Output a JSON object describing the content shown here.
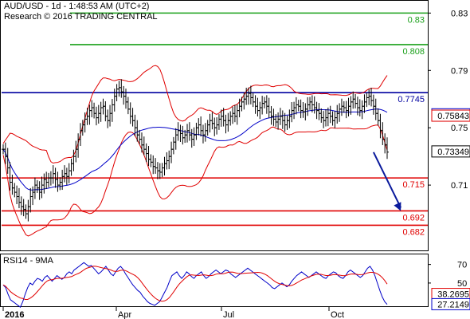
{
  "header": {
    "line1": "AUD/USD - 1d - 1:48:53 AM (UTC+2)",
    "line2": "Research © 2016 TRADING CENTRAL"
  },
  "rsi_label": "RSI14 - 9MA",
  "colors": {
    "resistance": "#1aa01a",
    "pivot": "#0000a0",
    "support": "#e00000",
    "bollinger": "#e00000",
    "ma": "#0000c8",
    "price": "#000000",
    "rsi": "#0000c8",
    "rsi_ma": "#e00000",
    "arrow": "#0a1a9c"
  },
  "chart_data": [
    {
      "type": "line",
      "title": "AUD/USD",
      "x_labels": [
        "2016",
        "Apr",
        "Jul",
        "Oct"
      ],
      "y_ticks": [
        0.71,
        0.75,
        0.79,
        0.83
      ],
      "ylim": [
        0.665,
        0.838
      ],
      "levels": [
        {
          "value": 0.83,
          "label": "0.83",
          "kind": "resistance"
        },
        {
          "value": 0.808,
          "label": "0.808",
          "kind": "resistance"
        },
        {
          "value": 0.7745,
          "label": "0.7745",
          "kind": "pivot"
        },
        {
          "value": 0.715,
          "label": "0.715",
          "kind": "support"
        },
        {
          "value": 0.692,
          "label": "0.692",
          "kind": "support"
        },
        {
          "value": 0.682,
          "label": "0.682",
          "kind": "support"
        }
      ],
      "value_boxes": [
        {
          "value": 0.75939,
          "label": "0.75939",
          "color": "#0000c8"
        },
        {
          "value": 0.75843,
          "label": "0.75843",
          "color": "#e00000"
        },
        {
          "value": 0.73349,
          "label": "0.73349",
          "color": "#000000"
        }
      ],
      "arrow": {
        "from_x": 163,
        "from_y": 0.733,
        "to_x": 175,
        "to_y": 0.692
      },
      "price_close": [
        0.735,
        0.73,
        0.722,
        0.712,
        0.708,
        0.705,
        0.702,
        0.698,
        0.695,
        0.693,
        0.69,
        0.695,
        0.702,
        0.705,
        0.71,
        0.708,
        0.705,
        0.71,
        0.714,
        0.712,
        0.715,
        0.715,
        0.718,
        0.714,
        0.71,
        0.712,
        0.716,
        0.718,
        0.716,
        0.72,
        0.725,
        0.73,
        0.735,
        0.742,
        0.748,
        0.752,
        0.756,
        0.758,
        0.762,
        0.764,
        0.76,
        0.757,
        0.76,
        0.764,
        0.765,
        0.758,
        0.755,
        0.76,
        0.766,
        0.772,
        0.777,
        0.778,
        0.775,
        0.772,
        0.768,
        0.763,
        0.758,
        0.755,
        0.75,
        0.745,
        0.742,
        0.738,
        0.735,
        0.732,
        0.728,
        0.726,
        0.723,
        0.722,
        0.72,
        0.719,
        0.722,
        0.725,
        0.727,
        0.73,
        0.735,
        0.74,
        0.745,
        0.748,
        0.746,
        0.743,
        0.745,
        0.748,
        0.745,
        0.742,
        0.745,
        0.75,
        0.752,
        0.748,
        0.745,
        0.748,
        0.752,
        0.755,
        0.753,
        0.75,
        0.752,
        0.756,
        0.758,
        0.755,
        0.752,
        0.755,
        0.758,
        0.76,
        0.758,
        0.762,
        0.765,
        0.768,
        0.77,
        0.772,
        0.774,
        0.771,
        0.768,
        0.765,
        0.762,
        0.764,
        0.767,
        0.768,
        0.765,
        0.761,
        0.758,
        0.756,
        0.754,
        0.756,
        0.758,
        0.755,
        0.752,
        0.755,
        0.758,
        0.762,
        0.764,
        0.766,
        0.765,
        0.762,
        0.761,
        0.763,
        0.766,
        0.768,
        0.766,
        0.764,
        0.762,
        0.76,
        0.757,
        0.755,
        0.757,
        0.76,
        0.758,
        0.755,
        0.757,
        0.76,
        0.763,
        0.765,
        0.764,
        0.762,
        0.765,
        0.768,
        0.77,
        0.767,
        0.764,
        0.762,
        0.765,
        0.768,
        0.771,
        0.772,
        0.769,
        0.765,
        0.76,
        0.755,
        0.748,
        0.742,
        0.738,
        0.733
      ],
      "rsi": [
        48,
        45,
        38,
        32,
        30,
        28,
        26,
        24,
        30,
        38,
        45,
        50,
        48,
        52,
        55,
        54,
        52,
        56,
        58,
        55,
        52,
        55,
        58,
        56,
        54,
        56,
        60,
        62,
        60,
        64,
        66,
        68,
        70,
        72,
        70,
        68,
        69,
        66,
        63,
        60,
        62,
        65,
        68,
        64,
        60,
        58,
        62,
        66,
        68,
        65,
        60,
        56,
        52,
        48,
        45,
        42,
        40,
        36,
        33,
        30,
        28,
        27,
        26,
        28,
        30,
        35,
        40,
        45,
        52,
        58,
        60,
        62,
        58,
        55,
        58,
        62,
        60,
        57,
        55,
        58,
        60,
        62,
        58,
        55,
        57,
        60,
        62,
        64,
        62,
        60,
        62,
        64,
        63,
        60,
        58,
        56,
        58,
        60,
        62,
        64,
        66,
        64,
        62,
        60,
        58,
        56,
        54,
        52,
        50,
        48,
        45,
        44,
        46,
        48,
        50,
        48,
        46,
        48,
        52,
        55,
        58,
        60,
        62,
        60,
        58,
        56,
        58,
        60,
        62,
        60,
        58,
        56,
        55,
        58,
        60,
        62,
        61,
        58,
        56,
        55,
        58,
        62,
        64,
        62,
        60,
        58,
        56,
        58,
        62,
        66,
        68,
        64,
        58,
        50,
        42,
        35,
        30,
        27
      ],
      "rsi_ticks": [
        50,
        70
      ],
      "rsi_ylim": [
        25,
        80
      ],
      "rsi_boxes": [
        {
          "value": 38.2695,
          "label": "38.2695",
          "color": "#e00000"
        },
        {
          "value": 27.2149,
          "label": "27.2149",
          "color": "#0000c8"
        }
      ]
    }
  ]
}
